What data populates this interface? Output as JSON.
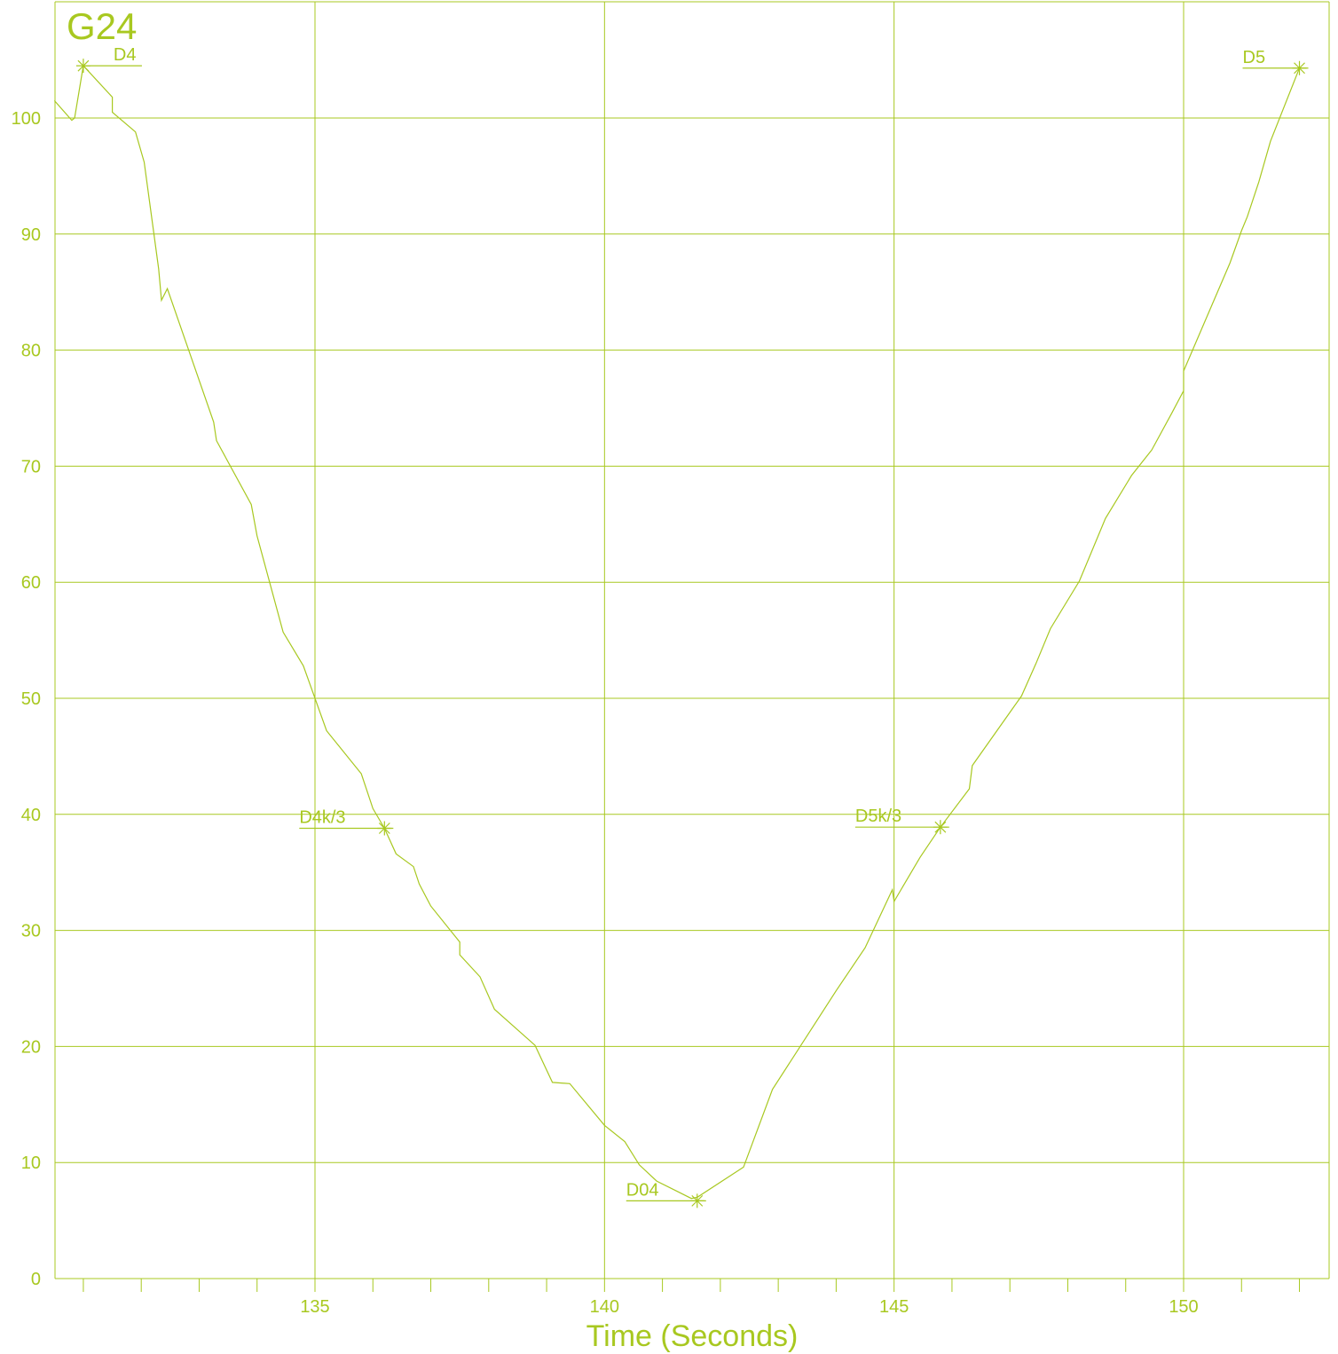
{
  "colors": {
    "accent": "#a8c820",
    "background": "#ffffff"
  },
  "chart_data": {
    "type": "line",
    "title": "G24",
    "xlabel": "Time (Seconds)",
    "ylabel": "",
    "xlim": [
      130.5,
      152.5
    ],
    "ylim": [
      0,
      110
    ],
    "grid": true,
    "x_ticks": [
      135,
      140,
      145,
      150
    ],
    "x_tick_labels": [
      "135",
      "140",
      "145",
      "150"
    ],
    "y_ticks": [
      0,
      10,
      20,
      30,
      40,
      50,
      60,
      70,
      80,
      90,
      100
    ],
    "y_tick_labels": [
      "0",
      "10",
      "20",
      "30",
      "40",
      "50",
      "60",
      "70",
      "80",
      "90",
      "100"
    ],
    "series": [
      {
        "x": [
          130.5,
          130.8,
          130.85,
          131.0,
          131.5,
          131.5,
          131.9,
          132.05,
          132.3,
          132.35,
          132.45,
          133.25,
          133.3,
          133.9,
          134.0,
          134.45,
          134.8,
          135.2,
          135.8,
          136.0,
          136.2,
          136.4,
          136.7,
          136.8,
          137.0,
          137.5,
          137.5,
          137.85,
          138.1,
          138.8,
          139.1,
          139.4,
          140.0,
          140.35,
          140.6,
          140.9,
          141.5,
          141.6,
          142.4,
          142.9,
          144.0,
          144.5,
          144.97,
          145.0,
          145.45,
          145.8,
          146.3,
          146.35,
          147.2,
          147.45,
          147.7,
          148.2,
          148.65,
          149.1,
          149.45,
          149.8,
          150.0,
          150.0,
          150.8,
          151.0,
          151.1,
          151.3,
          151.5,
          152.0
        ],
        "y": [
          101.5,
          99.8,
          100.0,
          104.5,
          101.8,
          100.5,
          98.8,
          96.2,
          87.0,
          84.3,
          85.3,
          73.8,
          72.2,
          66.7,
          64.0,
          55.7,
          52.8,
          47.2,
          43.5,
          40.5,
          38.8,
          36.6,
          35.5,
          34.0,
          32.1,
          29.0,
          27.9,
          26.0,
          23.2,
          20.1,
          16.9,
          16.8,
          13.2,
          11.8,
          9.8,
          8.4,
          6.9,
          7.0,
          9.6,
          16.3,
          24.8,
          28.5,
          33.5,
          32.5,
          36.3,
          38.9,
          42.2,
          44.2,
          50.2,
          53.0,
          56.0,
          60.1,
          65.5,
          69.2,
          71.4,
          74.6,
          76.5,
          78.2,
          87.5,
          90.3,
          91.5,
          94.5,
          98.0,
          104.3
        ]
      }
    ],
    "annotations": [
      {
        "label": "D4",
        "x": 131.0,
        "y": 104.5
      },
      {
        "label": "D4k/3",
        "x": 136.2,
        "y": 38.8
      },
      {
        "label": "D04",
        "x": 141.6,
        "y": 6.7
      },
      {
        "label": "D5k/3",
        "x": 145.8,
        "y": 38.9
      },
      {
        "label": "D5",
        "x": 152.0,
        "y": 104.3
      }
    ]
  }
}
